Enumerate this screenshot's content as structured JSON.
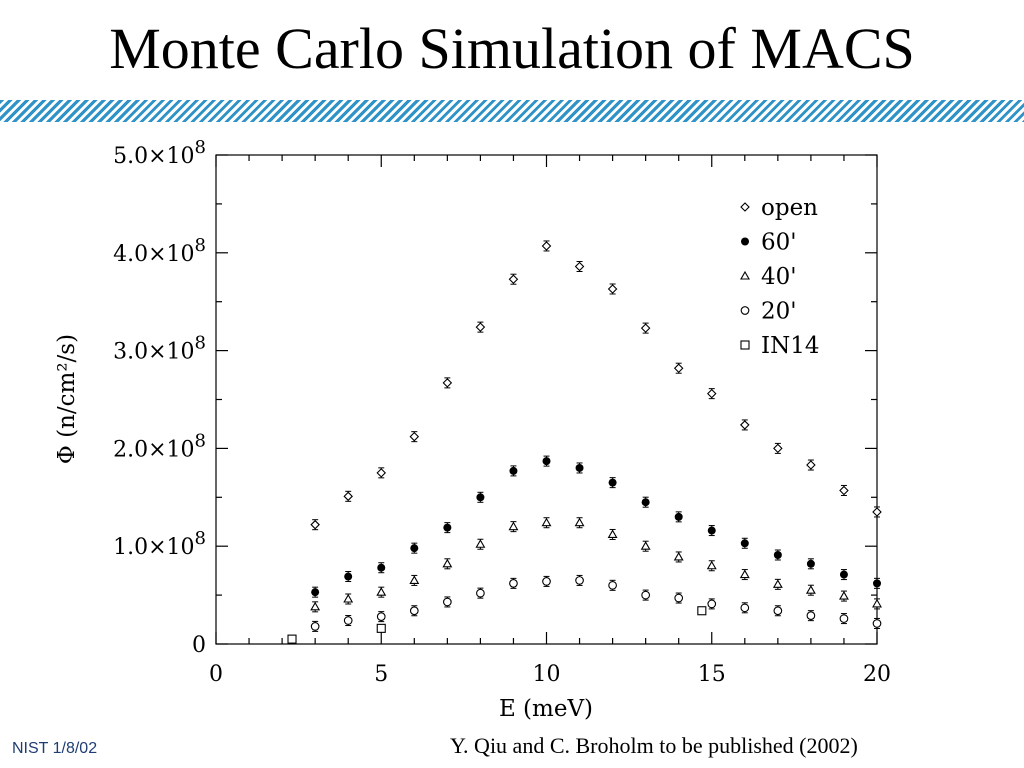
{
  "slide": {
    "title": "Monte Carlo Simulation of MACS",
    "footer_left": "NIST 1/8/02",
    "footer_right": "Y. Qiu and C. Broholm to be published (2002)"
  },
  "chart_data": {
    "type": "scatter",
    "title": "",
    "xlabel": "E (meV)",
    "ylabel": "Φ (n/cm²/s)",
    "xlim": [
      0,
      20
    ],
    "ylim": [
      0,
      500000000
    ],
    "x_ticks": [
      {
        "v": 0,
        "label": "0"
      },
      {
        "v": 5,
        "label": "5"
      },
      {
        "v": 10,
        "label": "10"
      },
      {
        "v": 15,
        "label": "15"
      },
      {
        "v": 20,
        "label": "20"
      }
    ],
    "y_ticks": [
      {
        "v": 0,
        "mant": "0",
        "exp": ""
      },
      {
        "v": 100000000,
        "mant": "1.0×10",
        "exp": "8"
      },
      {
        "v": 200000000,
        "mant": "2.0×10",
        "exp": "8"
      },
      {
        "v": 300000000,
        "mant": "3.0×10",
        "exp": "8"
      },
      {
        "v": 400000000,
        "mant": "4.0×10",
        "exp": "8"
      },
      {
        "v": 500000000,
        "mant": "5.0×10",
        "exp": "8"
      }
    ],
    "legend_position": "top-right",
    "grid": false,
    "series": [
      {
        "name": "open",
        "marker": "diamond",
        "x": [
          3,
          4,
          5,
          6,
          7,
          8,
          9,
          10,
          11,
          12,
          13,
          14,
          15,
          16,
          17,
          18,
          19,
          20
        ],
        "y": [
          122000000,
          151000000,
          175000000,
          212000000,
          267000000,
          324000000,
          373000000,
          407000000,
          386000000,
          363000000,
          323000000,
          282000000,
          256000000,
          224000000,
          200000000,
          183000000,
          157000000,
          135000000
        ]
      },
      {
        "name": "60'",
        "marker": "filled-circle",
        "x": [
          3,
          4,
          5,
          6,
          7,
          8,
          9,
          10,
          11,
          12,
          13,
          14,
          15,
          16,
          17,
          18,
          19,
          20
        ],
        "y": [
          53000000,
          69000000,
          78000000,
          98000000,
          119000000,
          150000000,
          177000000,
          187000000,
          180000000,
          165000000,
          145000000,
          130000000,
          116000000,
          103000000,
          91000000,
          82000000,
          71000000,
          62000000
        ]
      },
      {
        "name": "40'",
        "marker": "triangle",
        "x": [
          3,
          4,
          5,
          6,
          7,
          8,
          9,
          10,
          11,
          12,
          13,
          14,
          15,
          16,
          17,
          18,
          19,
          20
        ],
        "y": [
          38000000,
          46000000,
          53000000,
          65000000,
          82000000,
          102000000,
          120000000,
          124000000,
          124000000,
          112000000,
          100000000,
          89000000,
          80000000,
          71000000,
          61000000,
          55000000,
          49000000,
          41000000
        ]
      },
      {
        "name": "20'",
        "marker": "open-circle",
        "x": [
          3,
          4,
          5,
          6,
          7,
          8,
          9,
          10,
          11,
          12,
          13,
          14,
          15,
          16,
          17,
          18,
          19,
          20
        ],
        "y": [
          18000000,
          24000000,
          28000000,
          34000000,
          43000000,
          52000000,
          62000000,
          64000000,
          65000000,
          60000000,
          50000000,
          47000000,
          41000000,
          37000000,
          34000000,
          29000000,
          26000000,
          21000000
        ]
      },
      {
        "name": "IN14",
        "marker": "square",
        "x": [
          2.3,
          5.0,
          14.7
        ],
        "y": [
          5000000,
          16000000,
          34000000
        ]
      }
    ]
  }
}
